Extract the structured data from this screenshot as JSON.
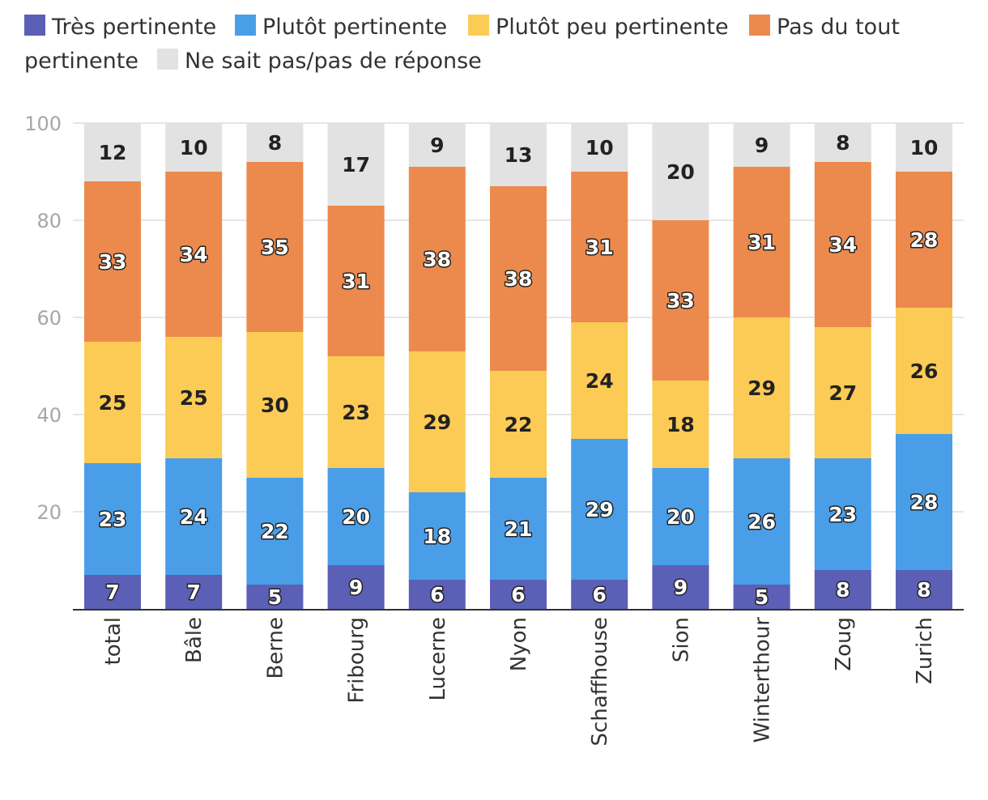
{
  "chart_data": {
    "type": "bar",
    "stacked": true,
    "categories": [
      "total",
      "Bâle",
      "Berne",
      "Fribourg",
      "Lucerne",
      "Nyon",
      "Schaffhouse",
      "Sion",
      "Winterthour",
      "Zoug",
      "Zurich"
    ],
    "series": [
      {
        "name": "Très pertinente",
        "color": "#5b5fb6",
        "values": [
          7,
          7,
          5,
          9,
          6,
          6,
          6,
          9,
          5,
          8,
          8
        ]
      },
      {
        "name": "Plutôt pertinente",
        "color": "#4a9ee8",
        "values": [
          23,
          24,
          22,
          20,
          18,
          21,
          29,
          20,
          26,
          23,
          28
        ]
      },
      {
        "name": "Plutôt peu pertinente",
        "color": "#fccb55",
        "values": [
          25,
          25,
          30,
          23,
          29,
          22,
          24,
          18,
          29,
          27,
          26
        ]
      },
      {
        "name": "Pas du tout pertinente",
        "color": "#ec8a4d",
        "values": [
          33,
          34,
          35,
          31,
          38,
          38,
          31,
          33,
          31,
          34,
          28
        ]
      },
      {
        "name": "Ne sait pas/pas de réponse",
        "color": "#e2e2e2",
        "values": [
          12,
          10,
          8,
          17,
          9,
          13,
          10,
          20,
          9,
          8,
          10
        ]
      }
    ],
    "ylim": [
      0,
      100
    ],
    "yticks": [
      "0",
      "20",
      "40",
      "60",
      "80",
      "100"
    ],
    "grid": true,
    "legend_position": "top",
    "xlabel": "",
    "ylabel": ""
  }
}
